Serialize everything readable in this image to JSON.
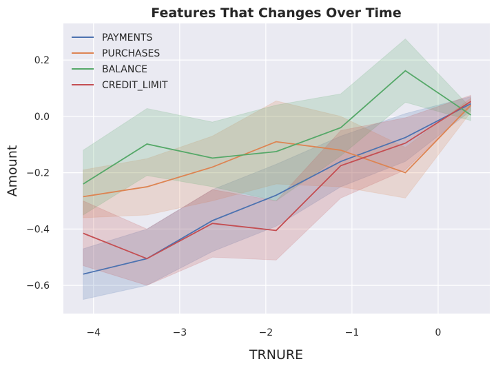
{
  "chart_data": {
    "type": "line",
    "title": "Features That Changes Over Time",
    "xlabel": "TRNURE",
    "ylabel": "Amount",
    "xlim": [
      -4.35,
      0.6
    ],
    "ylim": [
      -0.7,
      0.33
    ],
    "xticks": [
      -4,
      -3,
      -2,
      -1,
      0
    ],
    "yticks": [
      -0.6,
      -0.4,
      -0.2,
      0.0,
      0.2
    ],
    "xtick_labels": [
      "−4",
      "−3",
      "−2",
      "−1",
      "0"
    ],
    "ytick_labels": [
      "−0.6",
      "−0.4",
      "−0.2",
      "0.0",
      "0.2"
    ],
    "grid": true,
    "legend_position": "top-left",
    "x": [
      -4.12,
      -3.38,
      -2.62,
      -1.88,
      -1.13,
      -0.38,
      0.38
    ],
    "series": [
      {
        "name": "PAYMENTS",
        "color": "#4c72b0",
        "values": [
          -0.56,
          -0.505,
          -0.37,
          -0.28,
          -0.16,
          -0.075,
          0.045
        ],
        "lower": [
          -0.65,
          -0.6,
          -0.48,
          -0.39,
          -0.25,
          -0.16,
          0.02
        ],
        "upper": [
          -0.47,
          -0.4,
          -0.26,
          -0.17,
          -0.07,
          0.01,
          0.07
        ]
      },
      {
        "name": "PURCHASES",
        "color": "#dd8452",
        "values": [
          -0.285,
          -0.25,
          -0.18,
          -0.09,
          -0.12,
          -0.2,
          0.04
        ],
        "lower": [
          -0.36,
          -0.35,
          -0.3,
          -0.24,
          -0.25,
          -0.29,
          0.015
        ],
        "upper": [
          -0.19,
          -0.15,
          -0.07,
          0.055,
          0.0,
          -0.11,
          0.065
        ]
      },
      {
        "name": "BALANCE",
        "color": "#55a868",
        "values": [
          -0.24,
          -0.098,
          -0.148,
          -0.125,
          -0.04,
          0.162,
          0.005
        ],
        "lower": [
          -0.35,
          -0.21,
          -0.25,
          -0.3,
          -0.14,
          0.05,
          -0.015
        ],
        "upper": [
          -0.12,
          0.028,
          -0.02,
          0.04,
          0.08,
          0.275,
          0.03
        ]
      },
      {
        "name": "CREDIT_LIMIT",
        "color": "#c44e52",
        "values": [
          -0.415,
          -0.505,
          -0.38,
          -0.405,
          -0.175,
          -0.095,
          0.053
        ],
        "lower": [
          -0.53,
          -0.6,
          -0.5,
          -0.51,
          -0.29,
          -0.19,
          0.035
        ],
        "upper": [
          -0.3,
          -0.4,
          -0.26,
          -0.3,
          -0.05,
          -0.005,
          0.075
        ]
      }
    ]
  }
}
